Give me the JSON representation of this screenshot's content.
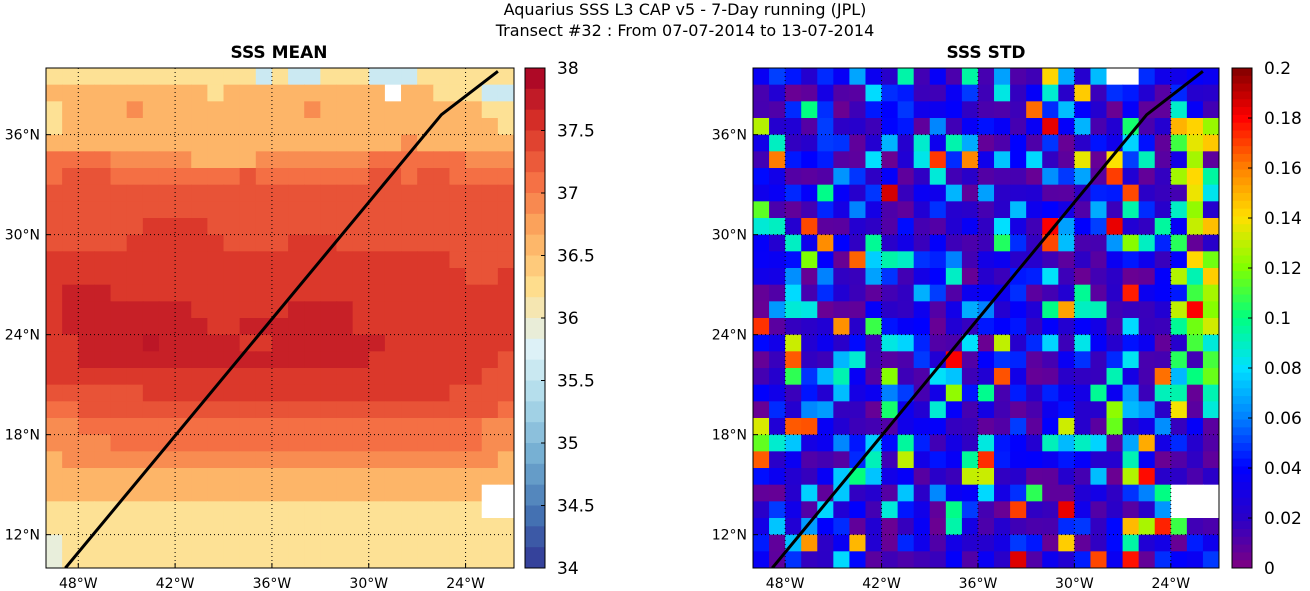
{
  "figure": {
    "title_line1": "Aquarius SSS L3 CAP v5 - 7-Day running (JPL)",
    "title_line2": "Transect #32 : From 07-07-2014 to 13-07-2014"
  },
  "chart_data": [
    {
      "type": "heatmap",
      "title": "SSS MEAN",
      "colormap": "RdYlBu_r",
      "clim": [
        34,
        38
      ],
      "colorbar_ticks": [
        "38",
        "37.5",
        "37",
        "36.5",
        "36",
        "35.5",
        "35",
        "34.5",
        "34"
      ],
      "x_ticks": [
        "48°W",
        "42°W",
        "36°W",
        "30°W",
        "24°W"
      ],
      "y_ticks": [
        "36°N",
        "30°N",
        "24°N",
        "18°N",
        "12°N"
      ],
      "lon_range": [
        -50,
        -21
      ],
      "lat_range": [
        10,
        40
      ],
      "grid": true,
      "transect": {
        "lon": [
          -48.8,
          -25.5,
          -22.0
        ],
        "lat": [
          10.0,
          37.2,
          39.8
        ],
        "color": "#000000"
      },
      "rows_top_to_bottom": [
        "11111111111110100111000111111",
        "22222222221222222222212211100",
        "12222322222222223222222222211",
        "12222222222222222222222222221",
        "22222222222222222222223222222",
        "44443333322223333333444444333",
        "45554444444454444444554554444",
        "55555555555555555555555555555",
        "55555555555555555555555555555",
        "55555566665555555555555555555",
        "55555666666555566655555555555",
        "66666666666666666666666665555",
        "66666666666666666666666666556",
        "67776666666666666666666666666",
        "67777777766666677776666666666",
        "67777777776677777776666666666",
        "66777787777766777777766666666",
        "66777777777777777777666666665",
        "66666666666666666666666666655",
        "55555566666666666666666665555",
        "44555555555555555555555555554",
        "33444444444444444444444444433",
        "33334444444444444444444444433",
        "23333333333333333333333333332",
        "22222222222222222222222222222",
        "22222222222222222222222222222",
        "11111111111111111111111111111",
        "11111111111111111111111111111",
        "11111111111111111111111111111",
        "11111111111111111111111111111"
      ],
      "level_values": [
        35.6,
        36.2,
        36.6,
        36.9,
        37.1,
        37.3,
        37.5,
        37.7,
        37.8
      ]
    },
    {
      "type": "heatmap",
      "title": "SSS STD",
      "colormap": "jet-like",
      "clim": [
        0,
        0.2
      ],
      "colorbar_ticks": [
        "0.2",
        "0.18",
        "0.16",
        "0.14",
        "0.12",
        "0.1",
        "0.08",
        "0.06",
        "0.04",
        "0.02",
        "0"
      ],
      "x_ticks": [
        "48°W",
        "42°W",
        "36°W",
        "30°W",
        "24°W"
      ],
      "y_ticks": [
        "36°N",
        "30°N",
        "24°N",
        "18°N",
        "12°N"
      ],
      "lon_range": [
        -50,
        -21
      ],
      "lat_range": [
        10,
        40
      ],
      "grid": true,
      "transect": {
        "lon": [
          -48.8,
          -25.5,
          -22.0
        ],
        "lat": [
          10.0,
          37.2,
          39.8
        ],
        "color": "#000000"
      }
    }
  ]
}
